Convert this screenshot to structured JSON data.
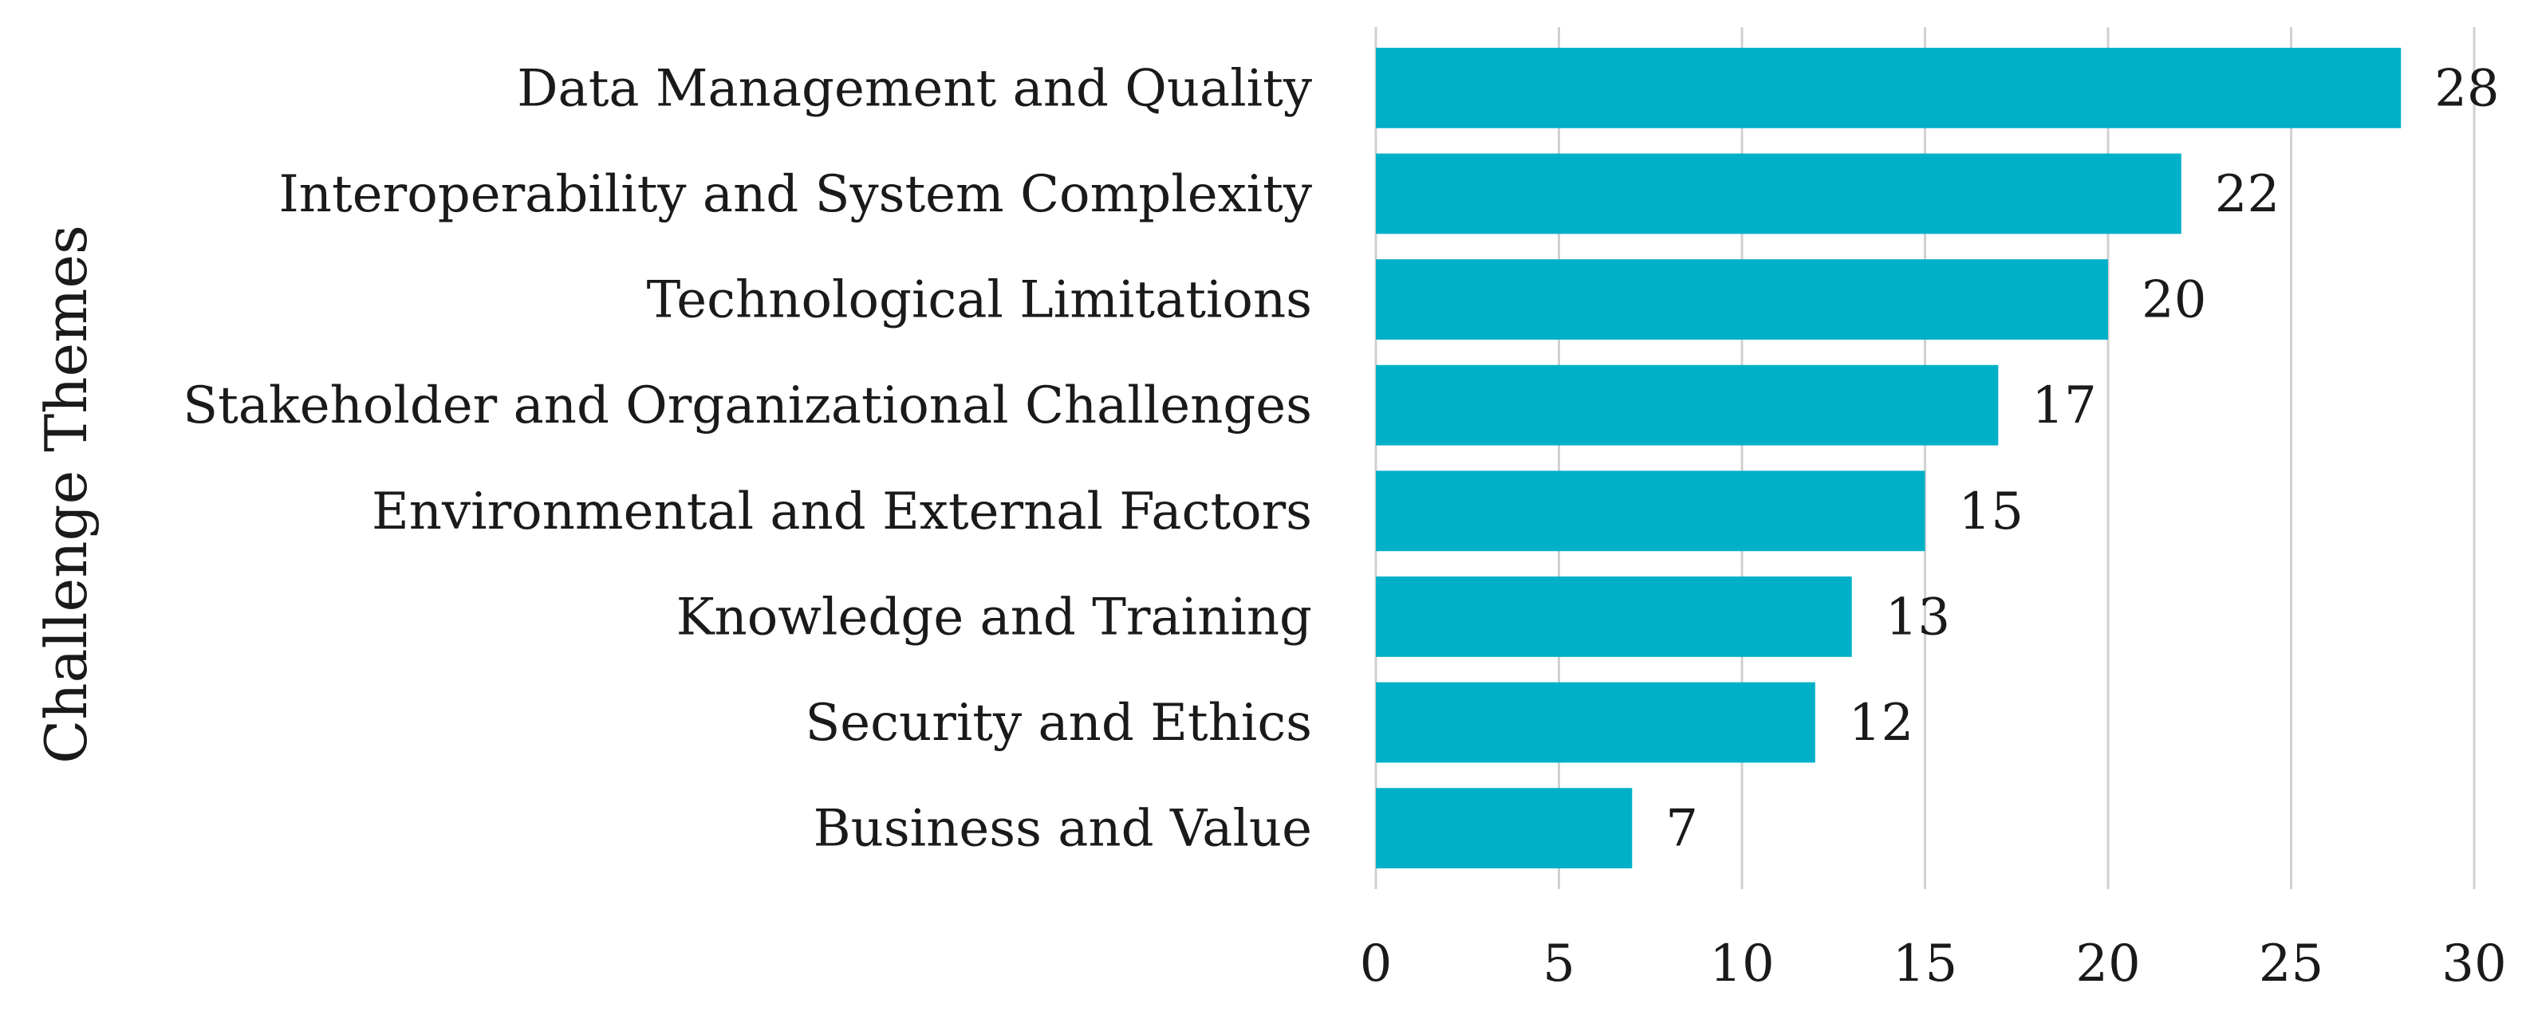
{
  "chart_data": {
    "type": "bar",
    "orientation": "horizontal",
    "title": "",
    "xlabel": "",
    "ylabel": "Challenge Themes",
    "categories": [
      "Data Management and Quality",
      "Interoperability and System Complexity",
      "Technological Limitations",
      "Stakeholder and Organizational Challenges",
      "Environmental and External Factors",
      "Knowledge and Training",
      "Security and Ethics",
      "Business and Value"
    ],
    "values": [
      28,
      22,
      20,
      17,
      15,
      13,
      12,
      7
    ],
    "data_labels": [
      "28",
      "22",
      "20",
      "17",
      "15",
      "13",
      "12",
      "7"
    ],
    "xlim": [
      0,
      30
    ],
    "x_ticks": [
      0,
      5,
      10,
      15,
      20,
      25,
      30
    ],
    "x_tick_labels": [
      "0",
      "5",
      "10",
      "15",
      "20",
      "25",
      "30"
    ],
    "grid": "vertical",
    "legend": "none",
    "bar_color": "#00B0C8"
  }
}
